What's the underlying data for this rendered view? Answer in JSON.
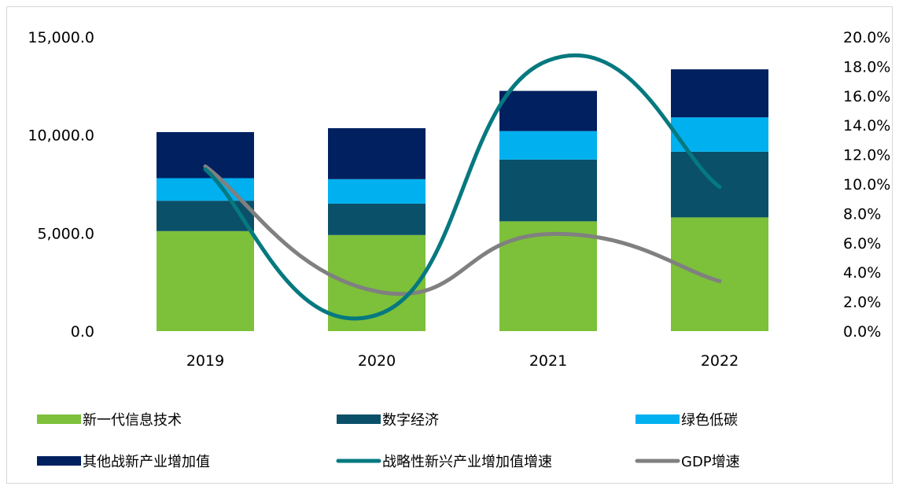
{
  "chart_data": {
    "type": "bar",
    "stacked": true,
    "categories": [
      "2019",
      "2020",
      "2021",
      "2022"
    ],
    "y_left": {
      "min": 0,
      "max": 15000,
      "ticks": [
        "0.0",
        "5,000.0",
        "10,000.0",
        "15,000.0"
      ],
      "tick_values": [
        0,
        5000,
        10000,
        15000
      ]
    },
    "y_right": {
      "min": 0,
      "max": 20,
      "ticks": [
        "0.0%",
        "2.0%",
        "4.0%",
        "6.0%",
        "8.0%",
        "10.0%",
        "12.0%",
        "14.0%",
        "16.0%",
        "18.0%",
        "20.0%"
      ],
      "tick_values": [
        0,
        2,
        4,
        6,
        8,
        10,
        12,
        14,
        16,
        18,
        20
      ]
    },
    "bar_series": [
      {
        "name": "新一代信息技术",
        "color": "#7DC03A",
        "values": [
          5100,
          4900,
          5600,
          5800
        ]
      },
      {
        "name": "数字经济",
        "color": "#0A5068",
        "values": [
          1550,
          1600,
          3150,
          3350
        ]
      },
      {
        "name": "绿色低碳",
        "color": "#00B0EF",
        "values": [
          1150,
          1250,
          1450,
          1750
        ]
      },
      {
        "name": "其他战新产业增加值",
        "color": "#002060",
        "values": [
          2350,
          2600,
          2050,
          2450
        ]
      }
    ],
    "line_series": [
      {
        "name": "战略性新兴产业增加值增速",
        "color": "#05797F",
        "axis": "right",
        "values": [
          11.0,
          1.1,
          18.4,
          9.8
        ]
      },
      {
        "name": "GDP增速",
        "color": "#808080",
        "axis": "right",
        "values": [
          11.2,
          2.7,
          6.6,
          3.4
        ]
      }
    ],
    "grid": false,
    "legend_position": "bottom"
  }
}
